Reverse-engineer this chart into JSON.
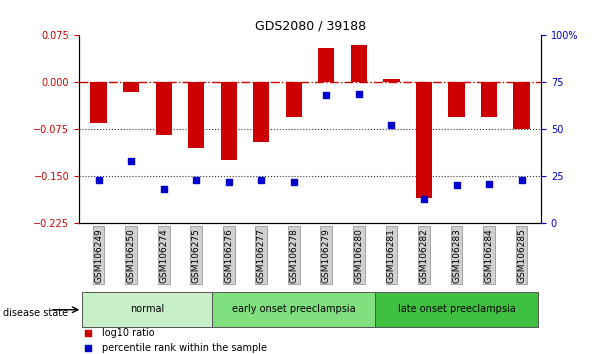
{
  "title": "GDS2080 / 39188",
  "samples": [
    "GSM106249",
    "GSM106250",
    "GSM106274",
    "GSM106275",
    "GSM106276",
    "GSM106277",
    "GSM106278",
    "GSM106279",
    "GSM106280",
    "GSM106281",
    "GSM106282",
    "GSM106283",
    "GSM106284",
    "GSM106285"
  ],
  "log10_ratio": [
    -0.065,
    -0.015,
    -0.085,
    -0.105,
    -0.125,
    -0.095,
    -0.055,
    0.055,
    0.06,
    0.005,
    -0.185,
    -0.055,
    -0.055,
    -0.075
  ],
  "percentile_rank": [
    23,
    33,
    18,
    23,
    22,
    23,
    22,
    68,
    69,
    52,
    13,
    20,
    21,
    23
  ],
  "groups": [
    {
      "label": "normal",
      "start": 0,
      "end": 4,
      "color": "#c8f0c8"
    },
    {
      "label": "early onset preeclampsia",
      "start": 4,
      "end": 9,
      "color": "#80e080"
    },
    {
      "label": "late onset preeclampsia",
      "start": 9,
      "end": 14,
      "color": "#40c040"
    }
  ],
  "ylim_left": [
    -0.225,
    0.075
  ],
  "ylim_right": [
    0,
    100
  ],
  "left_yticks": [
    -0.225,
    -0.15,
    -0.075,
    0,
    0.075
  ],
  "right_yticks": [
    0,
    25,
    50,
    75,
    100
  ],
  "bar_color": "#cc0000",
  "dot_color": "#0000cc",
  "zeroline_color": "#cc0000",
  "dotline_color": "#333333",
  "background_color": "#ffffff",
  "legend_items": [
    {
      "label": "log10 ratio",
      "color": "#cc0000"
    },
    {
      "label": "percentile rank within the sample",
      "color": "#0000cc"
    }
  ]
}
